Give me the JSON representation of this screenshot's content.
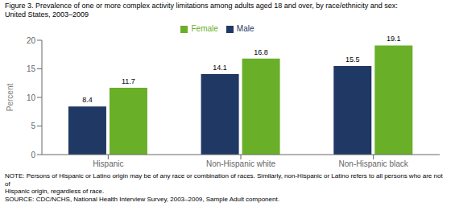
{
  "chart_data": {
    "type": "bar",
    "title": "Figure 3. Prevalence of one or more complex activity limitations among adults aged 18 and over, by race/ethnicity and sex:\nUnited States, 2003–2009",
    "categories": [
      "Hispanic",
      "Non-Hispanic white",
      "Non-Hispanic black"
    ],
    "series": [
      {
        "name": "Male",
        "color": "#1F3864",
        "values": [
          8.4,
          14.1,
          15.5
        ]
      },
      {
        "name": "Female",
        "color": "#6AAF28",
        "values": [
          11.7,
          16.8,
          19.1
        ]
      }
    ],
    "ylabel": "Percent",
    "ylim": [
      0,
      20
    ],
    "yticks": [
      0,
      5,
      10,
      15,
      20
    ],
    "grid": false,
    "legend": "top",
    "data_labels": true,
    "annotations": [
      "NOTE: Persons of Hispanic or Latino origin may be of any race or combination of races. Similarly, non-Hispanic or Latino refers to all persons who are not of",
      "Hispanic origin, regardless of race.",
      "SOURCE: CDC/NCHS, National Health Interview Survey, 2003–2009, Sample Adult component."
    ]
  }
}
